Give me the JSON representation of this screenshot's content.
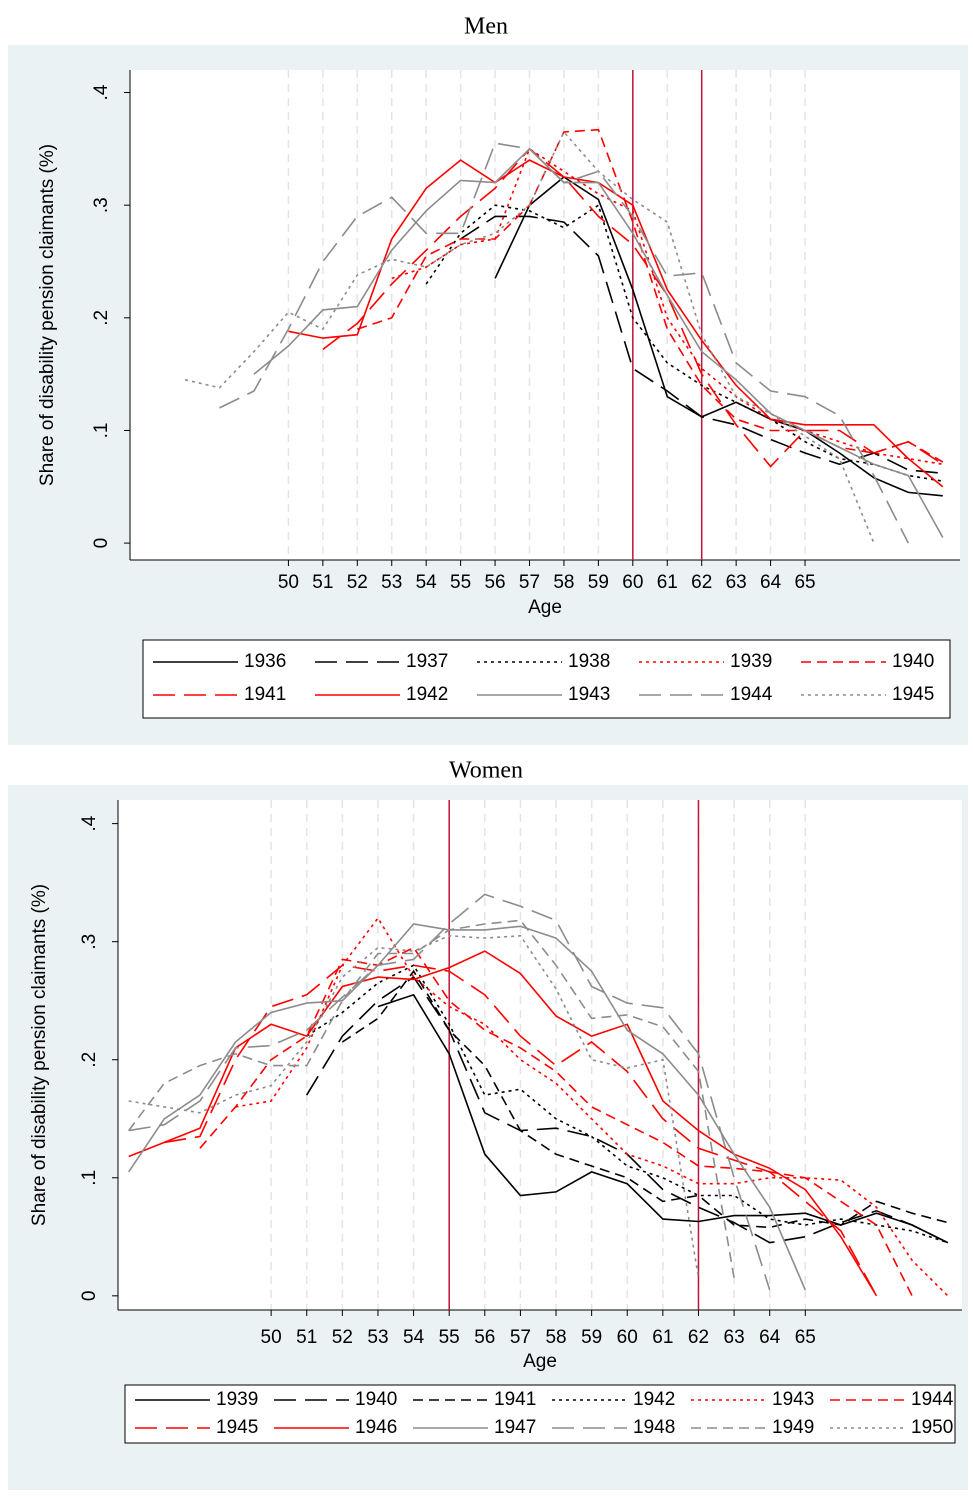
{
  "chart_data": [
    {
      "type": "line",
      "title": "Men",
      "x_label": "Age",
      "y_label": "Share of disability pension claimants (%)",
      "x": [
        47,
        48,
        49,
        50,
        51,
        52,
        53,
        54,
        55,
        56,
        57,
        58,
        59,
        60,
        61,
        62,
        63,
        64,
        65,
        66,
        67,
        68,
        69
      ],
      "xlim": [
        45.4,
        69.5
      ],
      "xticks": [
        50,
        51,
        52,
        53,
        54,
        55,
        56,
        57,
        58,
        59,
        60,
        61,
        62,
        63,
        64,
        65
      ],
      "ylim": [
        -0.015,
        0.42
      ],
      "yticks": [
        0,
        {
          "value": 0.1,
          "label": ".1"
        },
        {
          "value": 0.2,
          "label": ".2"
        },
        {
          "value": 0.3,
          "label": ".3"
        },
        {
          "value": 0.4,
          "label": ".4"
        }
      ],
      "grid": true,
      "vlines": [
        60,
        62
      ],
      "vline_color": "#c0143c",
      "series": [
        {
          "name": "1936",
          "color": "#000000",
          "style": "solid",
          "values": [
            null,
            null,
            null,
            null,
            null,
            null,
            null,
            null,
            null,
            0.235,
            0.3,
            0.325,
            0.305,
            0.225,
            0.13,
            0.112,
            0.125,
            0.11,
            0.1,
            0.08,
            0.058,
            0.045,
            0.042
          ]
        },
        {
          "name": "1937",
          "color": "#000000",
          "style": "longdash",
          "values": [
            null,
            null,
            null,
            null,
            null,
            null,
            null,
            null,
            0.27,
            0.29,
            0.29,
            0.285,
            0.255,
            0.155,
            0.135,
            0.112,
            0.105,
            0.092,
            0.08,
            0.07,
            0.08,
            0.065,
            0.062
          ]
        },
        {
          "name": "1938",
          "color": "#000000",
          "style": "dot",
          "values": [
            null,
            null,
            null,
            null,
            null,
            null,
            null,
            0.23,
            0.275,
            0.3,
            0.295,
            0.28,
            0.3,
            0.2,
            0.16,
            0.14,
            0.125,
            0.11,
            0.09,
            0.075,
            0.07,
            0.06,
            0.055
          ]
        },
        {
          "name": "1939",
          "color": "#ff0000",
          "style": "dot",
          "values": [
            null,
            null,
            null,
            null,
            null,
            null,
            0.235,
            0.245,
            0.265,
            0.27,
            0.35,
            0.33,
            0.31,
            0.295,
            0.2,
            0.155,
            0.13,
            0.11,
            0.1,
            0.09,
            0.08,
            0.075,
            0.07
          ]
        },
        {
          "name": "1940",
          "color": "#ff0000",
          "style": "dash",
          "values": [
            null,
            null,
            null,
            null,
            null,
            0.19,
            0.2,
            0.255,
            0.27,
            0.27,
            0.3,
            0.365,
            0.367,
            0.285,
            0.19,
            0.14,
            0.11,
            0.1,
            0.1,
            0.085,
            0.08,
            0.09,
            0.072
          ]
        },
        {
          "name": "1941",
          "color": "#ff0000",
          "style": "longdash",
          "values": [
            null,
            null,
            null,
            null,
            0.172,
            0.195,
            0.23,
            0.26,
            0.29,
            0.315,
            0.35,
            0.325,
            0.29,
            0.265,
            0.22,
            0.15,
            0.105,
            0.068,
            0.1,
            0.1,
            0.08,
            0.09,
            0.07
          ]
        },
        {
          "name": "1942",
          "color": "#ff0000",
          "style": "solid",
          "values": [
            null,
            null,
            null,
            0.188,
            0.182,
            0.185,
            0.27,
            0.315,
            0.34,
            0.32,
            0.34,
            0.325,
            0.32,
            0.3,
            0.225,
            0.18,
            0.14,
            0.11,
            0.105,
            0.105,
            0.105,
            0.075,
            0.05
          ]
        },
        {
          "name": "1943",
          "color": "#8c8c8c",
          "style": "solid",
          "values": [
            null,
            null,
            0.15,
            0.175,
            0.207,
            0.21,
            0.26,
            0.295,
            0.322,
            0.32,
            0.35,
            0.32,
            0.32,
            0.275,
            0.22,
            0.17,
            0.145,
            0.115,
            0.1,
            0.085,
            0.07,
            0.06,
            0.005
          ]
        },
        {
          "name": "1944",
          "color": "#8c8c8c",
          "style": "longdash",
          "values": [
            null,
            0.12,
            0.135,
            0.19,
            0.25,
            0.29,
            0.307,
            0.275,
            0.275,
            0.355,
            0.35,
            0.32,
            0.33,
            0.29,
            0.237,
            0.24,
            0.16,
            0.135,
            0.13,
            0.113,
            0.06,
            0,
            null
          ]
        },
        {
          "name": "1945",
          "color": "#8c8c8c",
          "style": "dot",
          "values": [
            0.145,
            0.138,
            0.17,
            0.205,
            0.19,
            0.238,
            0.252,
            0.245,
            0.265,
            0.275,
            0.3,
            0.365,
            0.33,
            0.305,
            0.285,
            0.185,
            0.13,
            0.115,
            0.095,
            0.075,
            0,
            null,
            null
          ]
        }
      ]
    },
    {
      "type": "line",
      "title": "Women",
      "x_label": "Age",
      "y_label": "Share of disability pension claimants (%)",
      "x": [
        46,
        47,
        48,
        49,
        50,
        51,
        52,
        53,
        54,
        55,
        56,
        57,
        58,
        59,
        60,
        61,
        62,
        63,
        64,
        65,
        66,
        67,
        68,
        69
      ],
      "xlim": [
        45.7,
        69.4
      ],
      "xticks": [
        50,
        51,
        52,
        53,
        54,
        55,
        56,
        57,
        58,
        59,
        60,
        61,
        62,
        63,
        64,
        65
      ],
      "ylim": [
        -0.012,
        0.42
      ],
      "yticks": [
        0,
        {
          "value": 0.1,
          "label": ".1"
        },
        {
          "value": 0.2,
          "label": ".2"
        },
        {
          "value": 0.3,
          "label": ".3"
        },
        {
          "value": 0.4,
          "label": ".4"
        }
      ],
      "grid": true,
      "vlines": [
        55,
        62
      ],
      "vline_color": "#c0143c",
      "series": [
        {
          "name": "1939",
          "color": "#000000",
          "style": "solid",
          "values": [
            null,
            null,
            null,
            null,
            null,
            null,
            null,
            0.245,
            0.255,
            0.205,
            0.12,
            0.085,
            0.088,
            0.105,
            0.095,
            0.065,
            0.063,
            0.068,
            0.068,
            0.07,
            0.06,
            0.07,
            0.06,
            0.045
          ]
        },
        {
          "name": "1940",
          "color": "#000000",
          "style": "longdash",
          "values": [
            null,
            null,
            null,
            null,
            null,
            0.17,
            0.22,
            0.25,
            0.27,
            0.225,
            0.155,
            0.14,
            0.142,
            0.135,
            0.12,
            0.09,
            0.075,
            0.062,
            0.045,
            0.05,
            0.062,
            0.072,
            0.06,
            0.045
          ]
        },
        {
          "name": "1941",
          "color": "#000000",
          "style": "dash",
          "values": [
            null,
            null,
            null,
            null,
            null,
            null,
            0.215,
            0.235,
            0.275,
            0.225,
            0.195,
            0.14,
            0.12,
            0.11,
            0.1,
            0.08,
            0.085,
            0.06,
            0.058,
            0.065,
            0.06,
            0.08,
            0.07,
            0.062
          ]
        },
        {
          "name": "1942",
          "color": "#000000",
          "style": "dot",
          "values": [
            null,
            null,
            null,
            null,
            null,
            0.22,
            0.24,
            0.265,
            0.28,
            0.23,
            0.17,
            0.175,
            0.15,
            0.135,
            0.11,
            0.1,
            0.085,
            0.085,
            0.065,
            0.06,
            0.065,
            0.06,
            0.055,
            0.045
          ]
        },
        {
          "name": "1943",
          "color": "#ff0000",
          "style": "dot",
          "values": [
            null,
            null,
            null,
            0.16,
            0.165,
            0.21,
            0.28,
            0.32,
            0.27,
            0.245,
            0.23,
            0.2,
            0.18,
            0.15,
            0.12,
            0.11,
            0.095,
            0.095,
            0.1,
            0.1,
            0.098,
            0.075,
            0.03,
            0
          ]
        },
        {
          "name": "1944",
          "color": "#ff0000",
          "style": "dash",
          "values": [
            null,
            null,
            0.125,
            0.16,
            0.2,
            0.22,
            0.285,
            0.28,
            0.295,
            0.25,
            0.225,
            0.21,
            0.19,
            0.16,
            0.145,
            0.13,
            0.11,
            0.108,
            0.105,
            0.1,
            0.08,
            0.06,
            0,
            null
          ]
        },
        {
          "name": "1945",
          "color": "#ff0000",
          "style": "longdash",
          "values": [
            null,
            0.13,
            0.135,
            0.2,
            0.245,
            0.255,
            0.28,
            0.275,
            0.28,
            0.275,
            0.255,
            0.22,
            0.195,
            0.215,
            0.19,
            0.15,
            0.125,
            0.115,
            0.105,
            0.08,
            0.055,
            0,
            null,
            null
          ]
        },
        {
          "name": "1946",
          "color": "#ff0000",
          "style": "solid",
          "values": [
            0.118,
            0.13,
            0.142,
            0.21,
            0.23,
            0.22,
            0.262,
            0.27,
            0.268,
            0.278,
            0.292,
            0.273,
            0.237,
            0.22,
            0.23,
            0.165,
            0.14,
            0.12,
            0.108,
            0.09,
            0.05,
            0,
            null,
            null
          ]
        },
        {
          "name": "1947",
          "color": "#8c8c8c",
          "style": "solid",
          "values": [
            0.105,
            0.15,
            0.17,
            0.215,
            0.24,
            0.248,
            0.25,
            0.28,
            0.315,
            0.31,
            0.31,
            0.313,
            0.303,
            0.275,
            0.225,
            0.205,
            0.17,
            0.12,
            0.075,
            0.005,
            null,
            null,
            null,
            null
          ]
        },
        {
          "name": "1948",
          "color": "#8c8c8c",
          "style": "longdash",
          "values": [
            0.14,
            0.145,
            0.165,
            0.21,
            0.212,
            0.225,
            0.253,
            0.28,
            0.285,
            0.315,
            0.34,
            0.33,
            0.318,
            0.262,
            0.248,
            0.244,
            0.205,
            0.1,
            0.005,
            null,
            null,
            null,
            null,
            null
          ]
        },
        {
          "name": "1949",
          "color": "#8c8c8c",
          "style": "dash",
          "values": [
            0.14,
            0.18,
            0.195,
            0.205,
            0.195,
            0.195,
            0.25,
            0.29,
            0.29,
            0.31,
            0.315,
            0.318,
            0.28,
            0.235,
            0.238,
            0.228,
            0.19,
            0.015,
            null,
            null,
            null,
            null,
            null,
            null
          ]
        },
        {
          "name": "1950",
          "color": "#8c8c8c",
          "style": "dot",
          "values": [
            0.165,
            0.16,
            0.155,
            0.17,
            0.178,
            0.215,
            0.27,
            0.295,
            0.292,
            0.305,
            0.303,
            0.305,
            0.26,
            0.2,
            0.193,
            0.2,
            0.015,
            null,
            null,
            null,
            null,
            null,
            null,
            null
          ]
        }
      ]
    }
  ]
}
